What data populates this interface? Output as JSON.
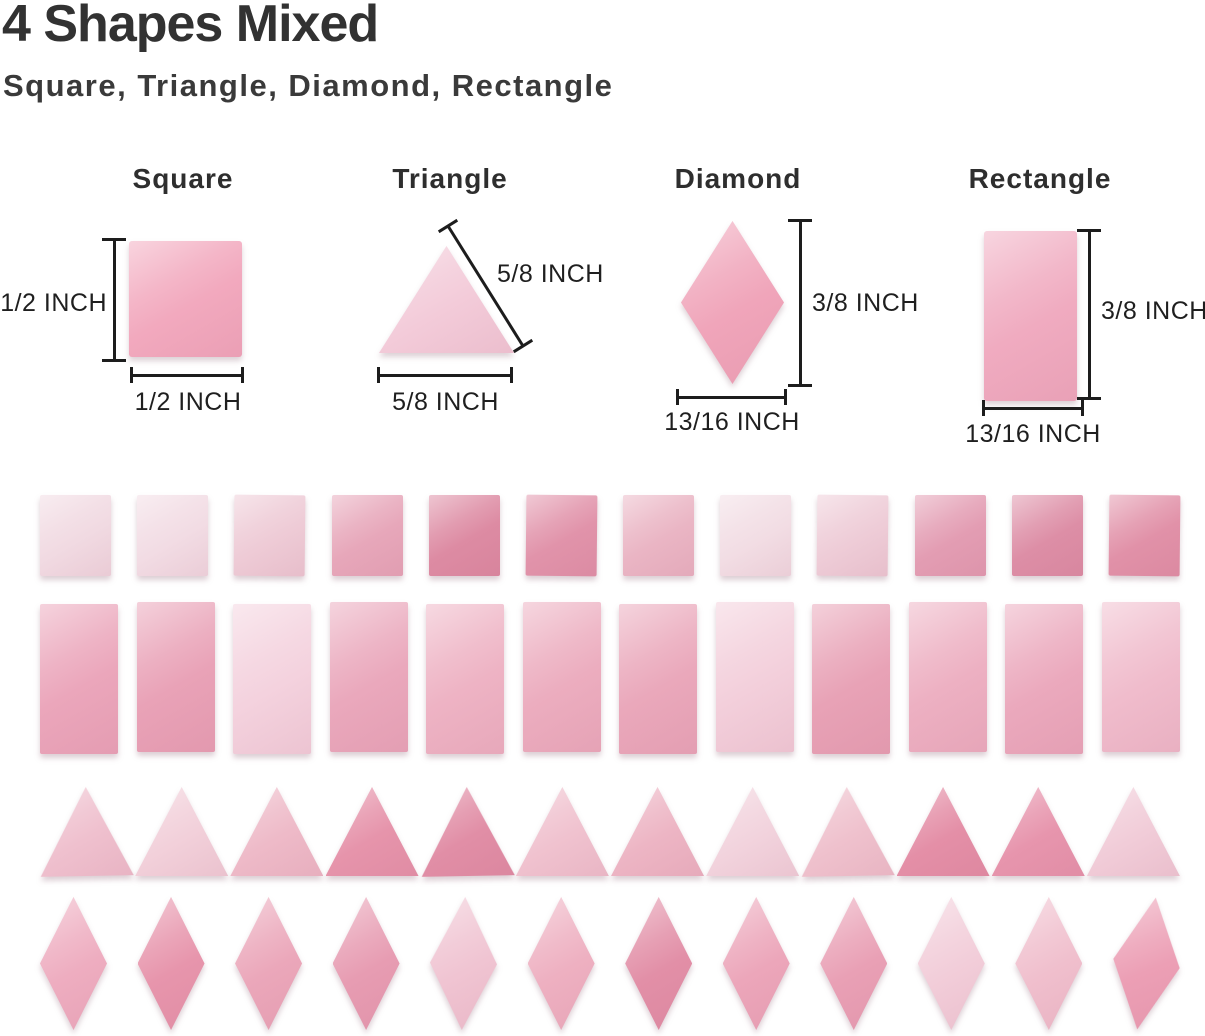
{
  "header": {
    "title": "4 Shapes Mixed",
    "subtitle": "Square, Triangle, Diamond, Rectangle"
  },
  "figures": [
    {
      "name": "Square",
      "side_label": "1/2 INCH",
      "bottom_label": "1/2 INCH",
      "tile_color": "#f2a9be"
    },
    {
      "name": "Triangle",
      "side_label": "5/8 INCH",
      "bottom_label": "5/8 INCH",
      "tile_color": "#f3cbd9"
    },
    {
      "name": "Diamond",
      "side_label": "3/8 INCH",
      "bottom_label": "13/16 INCH",
      "tile_color": "#f0a5ba"
    },
    {
      "name": "Rectangle",
      "side_label": "3/8 INCH",
      "bottom_label": "13/16 INCH",
      "tile_color": "#f0abc0"
    }
  ],
  "tile_rows": [
    {
      "shape": "square",
      "colors": [
        "#f1dae2",
        "#f2dce4",
        "#eecbd6",
        "#e7a7ba",
        "#dd8ba3",
        "#e193aa",
        "#eab5c4",
        "#f2dde4",
        "#eeccd7",
        "#e39db3",
        "#dd8ea6",
        "#e191a8"
      ]
    },
    {
      "shape": "rectangle",
      "colors": [
        "#eba6bb",
        "#e9a2b7",
        "#f4d2de",
        "#eaa8bc",
        "#eeb3c4",
        "#ecadbf",
        "#eaa8bb",
        "#f3cfdb",
        "#e8a2b6",
        "#edb0c2",
        "#eba9bd",
        "#f0bccc"
      ]
    },
    {
      "shape": "triangle",
      "colors": [
        "#efc0ce",
        "#f2d0da",
        "#eebac8",
        "#e694ab",
        "#e18ea6",
        "#f0c2cf",
        "#edb5c4",
        "#f2d3dd",
        "#efc1cd",
        "#e48fa7",
        "#e795ad",
        "#f1ccd8"
      ]
    },
    {
      "shape": "diamond",
      "colors": [
        "#eeadc0",
        "#e795ac",
        "#eba7ba",
        "#e79cb2",
        "#f0c4d2",
        "#eeb0c1",
        "#e28fa7",
        "#eca6ba",
        "#e9a0b5",
        "#f2cdd9",
        "#f0bfcd",
        "#ec9fb5"
      ]
    }
  ],
  "colors": {
    "text": "#323232",
    "dimension_line": "#1d1d1d"
  }
}
